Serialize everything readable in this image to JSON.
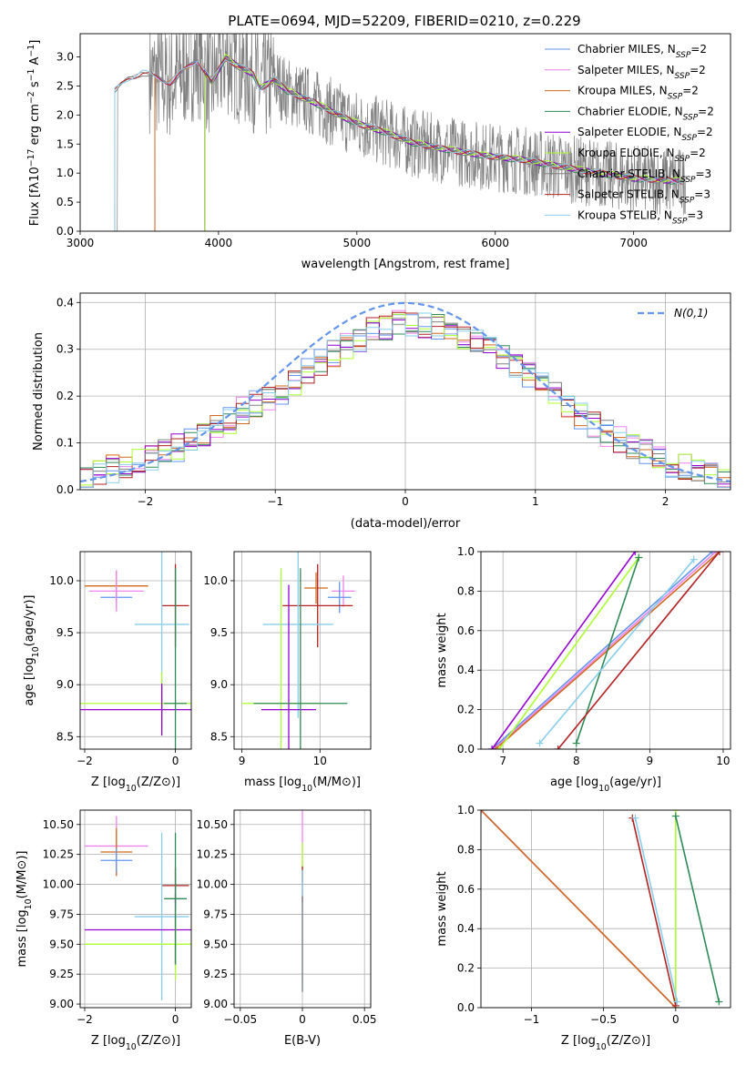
{
  "figure": {
    "title": "PLATE=0694, MJD=52209, FIBERID=0210, z=0.229"
  },
  "colors": {
    "Chabrier MILES": "#6495ed",
    "Salpeter MILES": "#ee82ee",
    "Kroupa MILES": "#d2691e",
    "Chabrier ELODIE": "#2e8b57",
    "Salpeter ELODIE": "#9400d3",
    "Kroupa ELODIE": "#adff2f",
    "Chabrier STELIB": "#808080",
    "Salpeter STELIB": "#b22222",
    "Kroupa STELIB": "#87ceeb",
    "data": "#808080",
    "normal": "#6495ed"
  },
  "chart_data": [
    {
      "id": "spectrum",
      "type": "line",
      "xlabel": "wavelength [Angstrom, rest frame]",
      "ylabel": "Flux [f_λ10^-17 erg cm^-2 s^-1 A^-1]",
      "xlim": [
        3000,
        7700
      ],
      "ylim": [
        0,
        3.4
      ],
      "xticks": [
        3000,
        4000,
        5000,
        6000,
        7000
      ],
      "yticks": [
        0.0,
        0.5,
        1.0,
        1.5,
        2.0,
        2.5,
        3.0
      ],
      "grid": false,
      "legend_position": "top-right",
      "data_noise_level": 0.5,
      "model_curve": [
        [
          3250,
          2.4
        ],
        [
          3350,
          2.62
        ],
        [
          3450,
          2.72
        ],
        [
          3550,
          2.63
        ],
        [
          3650,
          2.55
        ],
        [
          3750,
          2.75
        ],
        [
          3850,
          2.95
        ],
        [
          3950,
          2.55
        ],
        [
          4050,
          2.98
        ],
        [
          4150,
          2.82
        ],
        [
          4250,
          2.7
        ],
        [
          4300,
          2.45
        ],
        [
          4400,
          2.6
        ],
        [
          4500,
          2.4
        ],
        [
          4700,
          2.2
        ],
        [
          4860,
          2.0
        ],
        [
          5000,
          1.85
        ],
        [
          5200,
          1.7
        ],
        [
          5400,
          1.52
        ],
        [
          5600,
          1.42
        ],
        [
          5900,
          1.3
        ],
        [
          6200,
          1.22
        ],
        [
          6600,
          1.05
        ],
        [
          7000,
          0.9
        ],
        [
          7350,
          0.85
        ]
      ],
      "series": [
        {
          "name": "Chabrier MILES, N_SSP=2",
          "label_main": "Chabrier MILES, N",
          "label_sub": "SSP",
          "label_tail": "=2",
          "start": 3540
        },
        {
          "name": "Salpeter MILES, N_SSP=2",
          "label_main": "Salpeter MILES, N",
          "label_sub": "SSP",
          "label_tail": "=2",
          "start": 3540
        },
        {
          "name": "Kroupa MILES, N_SSP=2",
          "label_main": "Kroupa MILES, N",
          "label_sub": "SSP",
          "label_tail": "=2",
          "start": 3540
        },
        {
          "name": "Chabrier ELODIE, N_SSP=2",
          "label_main": "Chabrier ELODIE, N",
          "label_sub": "SSP",
          "label_tail": "=2",
          "start": 3900
        },
        {
          "name": "Salpeter ELODIE, N_SSP=2",
          "label_main": "Salpeter ELODIE, N",
          "label_sub": "SSP",
          "label_tail": "=2",
          "start": 3900
        },
        {
          "name": "Kroupa ELODIE, N_SSP=2",
          "label_main": "Kroupa ELODIE, N",
          "label_sub": "SSP",
          "label_tail": "=2",
          "start": 3900
        },
        {
          "name": "Chabrier STELIB, N_SSP=3",
          "label_main": "Chabrier STELIB, N",
          "label_sub": "SSP",
          "label_tail": "=3",
          "start": 3250
        },
        {
          "name": "Salpeter STELIB, N_SSP=3",
          "label_main": "Salpeter STELIB, N",
          "label_sub": "SSP",
          "label_tail": "=3",
          "start": 3250
        },
        {
          "name": "Kroupa STELIB, N_SSP=3",
          "label_main": "Kroupa STELIB, N",
          "label_sub": "SSP",
          "label_tail": "=3",
          "start": 3250
        }
      ]
    },
    {
      "id": "residuals",
      "type": "line",
      "xlabel": "(data-model)/error",
      "ylabel": "Normed distribution",
      "xlim": [
        -2.5,
        2.5
      ],
      "ylim": [
        0,
        0.42
      ],
      "xticks": [
        -2,
        -1,
        0,
        1,
        2
      ],
      "yticks": [
        0.0,
        0.1,
        0.2,
        0.3,
        0.4
      ],
      "grid": true,
      "legend_position": "top-right",
      "legend": [
        "N(0,1)"
      ],
      "bin_width": 0.1,
      "histogram_shape": [
        0.015,
        0.045,
        0.06,
        0.09,
        0.12,
        0.17,
        0.2,
        0.25,
        0.3,
        0.34,
        0.36,
        0.35,
        0.32,
        0.28,
        0.24,
        0.18,
        0.13,
        0.09,
        0.06,
        0.04,
        0.02
      ]
    },
    {
      "id": "age_vs_Z",
      "type": "scatter",
      "xlabel": "Z [log10(Z/Z⊙)]",
      "ylabel": "age  [log10(age/yr)]",
      "xlim": [
        -2.1,
        0.35
      ],
      "ylim": [
        8.38,
        10.28
      ],
      "xticks": [
        -2,
        0
      ],
      "yticks": [
        8.5,
        9.0,
        9.5,
        10.0
      ],
      "grid": true,
      "points": [
        {
          "x": -1.3,
          "y": 9.95,
          "xerr": 0.7,
          "yerr": 0.15,
          "color": "Kroupa MILES"
        },
        {
          "x": -1.3,
          "y": 9.84,
          "xerr": 0.35,
          "yerr": 0.1,
          "color": "Chabrier MILES"
        },
        {
          "x": -1.3,
          "y": 9.9,
          "xerr": 0.6,
          "yerr": 0.2,
          "color": "Salpeter MILES"
        },
        {
          "x": 0.0,
          "y": 9.76,
          "xerr": 0.3,
          "yerr": 0.4,
          "color": "Salpeter STELIB"
        },
        {
          "x": -0.3,
          "y": 9.58,
          "xerr": 0.6,
          "yerr": 1.0,
          "color": "Kroupa STELIB"
        },
        {
          "x": -0.3,
          "y": 8.82,
          "xerr": 2.0,
          "yerr": 0.3,
          "color": "Kroupa ELODIE"
        },
        {
          "x": -0.3,
          "y": 8.76,
          "xerr": 2.0,
          "yerr": 0.25,
          "color": "Salpeter ELODIE"
        },
        {
          "x": 0.0,
          "y": 8.82,
          "xerr": 0.25,
          "yerr": 1.3,
          "color": "Chabrier ELODIE"
        }
      ]
    },
    {
      "id": "age_vs_mass",
      "type": "scatter",
      "xlabel": "mass [log10(M/M⊙)]",
      "ylabel": "",
      "xlim": [
        8.9,
        10.65
      ],
      "ylim": [
        8.38,
        10.28
      ],
      "xticks": [
        9,
        10
      ],
      "yticks": [
        8.5,
        9.0,
        9.5,
        10.0
      ],
      "grid": true,
      "points": [
        {
          "x": 9.95,
          "y": 9.93,
          "xerr": 0.15,
          "yerr": 0.15,
          "color": "Kroupa MILES"
        },
        {
          "x": 10.3,
          "y": 9.9,
          "xerr": 0.15,
          "yerr": 0.15,
          "color": "Salpeter MILES"
        },
        {
          "x": 10.25,
          "y": 9.84,
          "xerr": 0.15,
          "yerr": 0.15,
          "color": "Chabrier MILES"
        },
        {
          "x": 9.97,
          "y": 9.76,
          "xerr": 0.45,
          "yerr": 0.4,
          "color": "Salpeter STELIB"
        },
        {
          "x": 9.72,
          "y": 9.58,
          "xerr": 0.45,
          "yerr": 0.9,
          "color": "Kroupa STELIB"
        },
        {
          "x": 9.5,
          "y": 8.82,
          "xerr": 0.5,
          "yerr": 1.3,
          "color": "Kroupa ELODIE"
        },
        {
          "x": 9.6,
          "y": 8.76,
          "xerr": 0.35,
          "yerr": 1.2,
          "color": "Salpeter ELODIE"
        },
        {
          "x": 9.75,
          "y": 8.82,
          "xerr": 0.6,
          "yerr": 1.3,
          "color": "Chabrier ELODIE"
        }
      ]
    },
    {
      "id": "weight_vs_age",
      "type": "line",
      "xlabel": "age  [log10(age/yr)]",
      "ylabel": "mass weight",
      "xlim": [
        6.7,
        10.1
      ],
      "ylim": [
        0.0,
        1.0
      ],
      "xticks": [
        7,
        8,
        9,
        10
      ],
      "yticks": [
        0.0,
        0.2,
        0.4,
        0.6,
        0.8,
        1.0
      ],
      "grid": true,
      "series": [
        {
          "color": "Chabrier MILES",
          "x": [
            6.85,
            9.85
          ],
          "y": [
            0.0,
            1.0
          ]
        },
        {
          "color": "Salpeter MILES",
          "x": [
            6.88,
            9.9
          ],
          "y": [
            0.0,
            1.0
          ]
        },
        {
          "color": "Kroupa MILES",
          "x": [
            6.9,
            9.95
          ],
          "y": [
            0.0,
            1.0
          ]
        },
        {
          "color": "Salpeter ELODIE",
          "x": [
            6.85,
            8.8
          ],
          "y": [
            0.0,
            1.0
          ]
        },
        {
          "color": "Kroupa ELODIE",
          "x": [
            6.95,
            8.85
          ],
          "y": [
            0.0,
            0.97
          ]
        },
        {
          "color": "Chabrier ELODIE",
          "x": [
            8.0,
            8.85
          ],
          "y": [
            0.03,
            0.97
          ]
        },
        {
          "color": "Kroupa STELIB",
          "x": [
            7.5,
            9.6
          ],
          "y": [
            0.03,
            0.96
          ]
        },
        {
          "color": "Salpeter STELIB",
          "x": [
            7.75,
            9.95
          ],
          "y": [
            0.0,
            1.0
          ]
        }
      ]
    },
    {
      "id": "mass_vs_Z",
      "type": "scatter",
      "xlabel": "Z [log10(Z/Z⊙)]",
      "ylabel": "mass [log10(M/M⊙)]",
      "xlim": [
        -2.1,
        0.35
      ],
      "ylim": [
        8.97,
        10.62
      ],
      "xticks": [
        -2,
        0
      ],
      "yticks": [
        9.0,
        9.25,
        9.5,
        9.75,
        10.0,
        10.25,
        10.5
      ],
      "grid": true,
      "points": [
        {
          "x": -1.3,
          "y": 10.32,
          "xerr": 0.7,
          "yerr": 0.25,
          "color": "Salpeter MILES"
        },
        {
          "x": -1.3,
          "y": 10.27,
          "xerr": 0.35,
          "yerr": 0.2,
          "color": "Kroupa MILES"
        },
        {
          "x": -1.3,
          "y": 10.2,
          "xerr": 0.35,
          "yerr": 0.1,
          "color": "Chabrier MILES"
        },
        {
          "x": 0.0,
          "y": 9.99,
          "xerr": 0.3,
          "yerr": 0.15,
          "color": "Salpeter STELIB"
        },
        {
          "x": -0.3,
          "y": 9.73,
          "xerr": 0.6,
          "yerr": 0.7,
          "color": "Kroupa STELIB"
        },
        {
          "x": 0.0,
          "y": 9.62,
          "xerr": 2.0,
          "yerr": 0.3,
          "color": "Salpeter ELODIE"
        },
        {
          "x": 0.0,
          "y": 9.5,
          "xerr": 2.0,
          "yerr": 0.3,
          "color": "Kroupa ELODIE"
        },
        {
          "x": 0.0,
          "y": 9.88,
          "xerr": 0.25,
          "yerr": 0.55,
          "color": "Chabrier ELODIE"
        }
      ]
    },
    {
      "id": "mass_vs_ebv",
      "type": "scatter",
      "xlabel": "E(B-V)",
      "ylabel": "",
      "xlim": [
        -0.055,
        0.055
      ],
      "ylim": [
        8.97,
        10.62
      ],
      "xticks": [
        -0.05,
        0.0,
        0.05
      ],
      "yticks": [
        9.0,
        9.25,
        9.5,
        9.75,
        10.0,
        10.25,
        10.5
      ],
      "grid": true,
      "points": [
        {
          "x": 0.0,
          "y": 10.32,
          "xerr": 0.0,
          "yerr": 0.3,
          "color": "Salpeter MILES"
        },
        {
          "x": 0.0,
          "y": 10.2,
          "xerr": 0.0,
          "yerr": 0.15,
          "color": "Kroupa ELODIE"
        },
        {
          "x": 0.0,
          "y": 10.0,
          "xerr": 0.0,
          "yerr": 0.15,
          "color": "Salpeter STELIB"
        },
        {
          "x": 0.0,
          "y": 9.62,
          "xerr": 0.0,
          "yerr": 0.5,
          "color": "Kroupa STELIB"
        },
        {
          "x": 0.0,
          "y": 9.5,
          "xerr": 0.0,
          "yerr": 0.4,
          "color": "Chabrier STELIB"
        }
      ]
    },
    {
      "id": "weight_vs_Z",
      "type": "line",
      "xlabel": "Z [log10(Z/Z⊙)]",
      "ylabel": "mass weight",
      "xlim": [
        -1.35,
        0.38
      ],
      "ylim": [
        0.0,
        1.0
      ],
      "xticks": [
        -1.0,
        -0.5,
        0.0
      ],
      "yticks": [
        0.0,
        0.2,
        0.4,
        0.6,
        0.8,
        1.0
      ],
      "grid": true,
      "series": [
        {
          "color": "Chabrier MILES",
          "x": [
            -1.35,
            0.0
          ],
          "y": [
            1.0,
            0.0
          ]
        },
        {
          "color": "Salpeter MILES",
          "x": [
            -1.35,
            0.0
          ],
          "y": [
            1.0,
            0.0
          ]
        },
        {
          "color": "Kroupa MILES",
          "x": [
            -1.35,
            0.0
          ],
          "y": [
            1.0,
            0.0
          ]
        },
        {
          "color": "Kroupa ELODIE",
          "x": [
            0.0,
            0.0
          ],
          "y": [
            0.0,
            1.0
          ]
        },
        {
          "color": "Chabrier ELODIE",
          "x": [
            0.0,
            0.3
          ],
          "y": [
            0.97,
            0.03
          ]
        },
        {
          "color": "Salpeter STELIB",
          "x": [
            -0.3,
            0.0
          ],
          "y": [
            0.96,
            0.01
          ]
        },
        {
          "color": "Kroupa STELIB",
          "x": [
            -0.28,
            0.01
          ],
          "y": [
            0.96,
            0.03
          ]
        }
      ]
    }
  ]
}
